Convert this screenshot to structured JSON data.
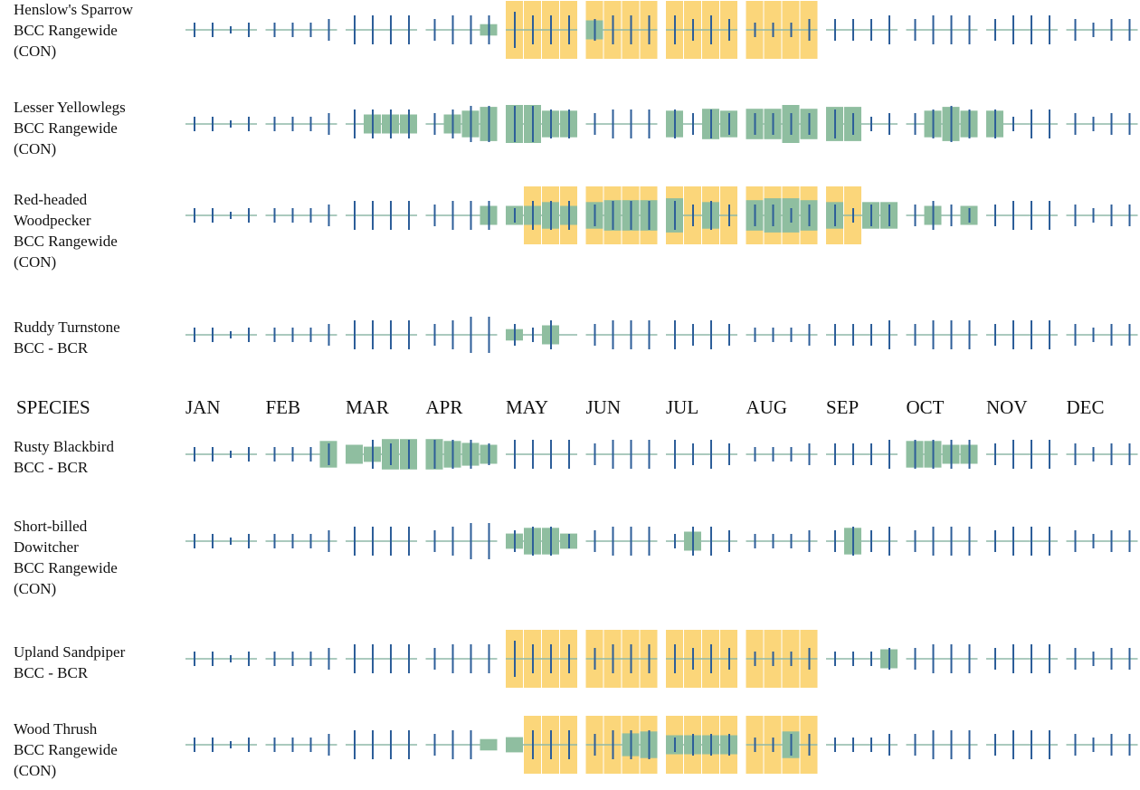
{
  "header": {
    "species": "SPECIES",
    "months": [
      "JAN",
      "FEB",
      "MAR",
      "APR",
      "MAY",
      "JUN",
      "JUL",
      "AUG",
      "SEP",
      "OCT",
      "NOV",
      "DEC"
    ]
  },
  "species": [
    {
      "lines": [
        "Henslow's Sparrow",
        "BCC Rangewide",
        "(CON)"
      ],
      "presence": [
        0,
        0,
        0,
        0,
        0,
        0,
        0,
        0,
        0,
        0,
        0,
        0,
        0,
        0,
        0,
        3,
        0,
        0,
        0,
        0,
        5,
        0,
        0,
        0,
        0,
        0,
        0,
        0,
        0,
        0,
        0,
        0,
        0,
        0,
        0,
        0,
        0,
        0,
        0,
        0,
        0,
        0,
        0,
        0,
        0,
        0,
        0,
        0
      ],
      "effort": [
        2,
        2,
        1,
        2,
        2,
        2,
        2,
        3,
        4,
        4,
        4,
        4,
        3,
        4,
        4,
        4,
        5,
        4,
        4,
        4,
        3,
        4,
        4,
        4,
        4,
        3,
        4,
        3,
        2,
        2,
        2,
        3,
        3,
        3,
        3,
        4,
        3,
        4,
        4,
        4,
        3,
        4,
        4,
        4,
        3,
        2,
        3,
        3
      ],
      "breeding": [
        0,
        0,
        0,
        0,
        0,
        0,
        0,
        0,
        0,
        0,
        0,
        0,
        0,
        0,
        0,
        0,
        1,
        1,
        1,
        1,
        1,
        1,
        1,
        1,
        1,
        1,
        1,
        1,
        1,
        1,
        1,
        1,
        0,
        0,
        0,
        0,
        0,
        0,
        0,
        0,
        0,
        0,
        0,
        0,
        0,
        0,
        0,
        0
      ]
    },
    {
      "lines": [
        "Lesser Yellowlegs",
        "BCC Rangewide",
        "(CON)"
      ],
      "presence": [
        0,
        0,
        0,
        0,
        0,
        0,
        0,
        0,
        0,
        5,
        5,
        5,
        0,
        5,
        7,
        9,
        10,
        10,
        7,
        7,
        0,
        0,
        0,
        0,
        7,
        0,
        8,
        7,
        8,
        8,
        10,
        8,
        9,
        9,
        0,
        0,
        0,
        7,
        9,
        7,
        7,
        0,
        0,
        0,
        0,
        0,
        0,
        0
      ],
      "effort": [
        2,
        2,
        1,
        2,
        2,
        2,
        2,
        3,
        4,
        4,
        4,
        4,
        3,
        4,
        5,
        5,
        5,
        5,
        4,
        4,
        3,
        4,
        4,
        4,
        4,
        3,
        4,
        3,
        3,
        3,
        3,
        3,
        4,
        3,
        2,
        3,
        3,
        4,
        5,
        4,
        4,
        2,
        4,
        4,
        3,
        2,
        3,
        3
      ],
      "breeding": [
        0,
        0,
        0,
        0,
        0,
        0,
        0,
        0,
        0,
        0,
        0,
        0,
        0,
        0,
        0,
        0,
        0,
        0,
        0,
        0,
        0,
        0,
        0,
        0,
        0,
        0,
        0,
        0,
        0,
        0,
        0,
        0,
        0,
        0,
        0,
        0,
        0,
        0,
        0,
        0,
        0,
        0,
        0,
        0,
        0,
        0,
        0,
        0
      ]
    },
    {
      "lines": [
        "Red-headed",
        "Woodpecker",
        "BCC Rangewide",
        "(CON)"
      ],
      "presence": [
        0,
        0,
        0,
        0,
        0,
        0,
        0,
        0,
        0,
        0,
        0,
        0,
        0,
        0,
        0,
        5,
        5,
        5,
        7,
        5,
        7,
        8,
        8,
        8,
        9,
        0,
        7,
        0,
        8,
        9,
        9,
        8,
        7,
        0,
        7,
        7,
        0,
        5,
        0,
        5,
        0,
        0,
        0,
        0,
        0,
        0,
        0,
        0
      ],
      "effort": [
        2,
        2,
        1,
        2,
        2,
        2,
        2,
        3,
        4,
        4,
        4,
        4,
        3,
        4,
        4,
        4,
        2,
        4,
        4,
        4,
        3,
        4,
        4,
        4,
        4,
        3,
        4,
        3,
        3,
        3,
        2,
        3,
        3,
        2,
        3,
        3,
        3,
        4,
        3,
        2,
        3,
        4,
        4,
        4,
        3,
        2,
        3,
        3
      ],
      "breeding": [
        0,
        0,
        0,
        0,
        0,
        0,
        0,
        0,
        0,
        0,
        0,
        0,
        0,
        0,
        0,
        0,
        0,
        1,
        1,
        1,
        1,
        1,
        1,
        1,
        1,
        1,
        1,
        1,
        1,
        1,
        1,
        1,
        1,
        1,
        0,
        0,
        0,
        0,
        0,
        0,
        0,
        0,
        0,
        0,
        0,
        0,
        0,
        0
      ]
    },
    {
      "lines": [
        "Ruddy Turnstone",
        "BCC - BCR"
      ],
      "presence": [
        0,
        0,
        0,
        0,
        0,
        0,
        0,
        0,
        0,
        0,
        0,
        0,
        0,
        0,
        0,
        0,
        3,
        0,
        5,
        0,
        0,
        0,
        0,
        0,
        0,
        0,
        0,
        0,
        0,
        0,
        0,
        0,
        0,
        0,
        0,
        0,
        0,
        0,
        0,
        0,
        0,
        0,
        0,
        0,
        0,
        0,
        0,
        0
      ],
      "effort": [
        2,
        2,
        1,
        2,
        2,
        2,
        2,
        3,
        4,
        4,
        4,
        4,
        3,
        4,
        5,
        5,
        3,
        2,
        4,
        0,
        3,
        4,
        4,
        4,
        4,
        3,
        4,
        3,
        2,
        2,
        2,
        3,
        3,
        3,
        3,
        4,
        3,
        4,
        4,
        4,
        3,
        4,
        4,
        4,
        3,
        2,
        3,
        3
      ],
      "breeding": [
        0,
        0,
        0,
        0,
        0,
        0,
        0,
        0,
        0,
        0,
        0,
        0,
        0,
        0,
        0,
        0,
        0,
        0,
        0,
        0,
        0,
        0,
        0,
        0,
        0,
        0,
        0,
        0,
        0,
        0,
        0,
        0,
        0,
        0,
        0,
        0,
        0,
        0,
        0,
        0,
        0,
        0,
        0,
        0,
        0,
        0,
        0,
        0
      ]
    },
    {
      "lines": [
        "Rusty Blackbird",
        "BCC - BCR"
      ],
      "presence": [
        0,
        0,
        0,
        0,
        0,
        0,
        0,
        7,
        5,
        4,
        8,
        8,
        8,
        7,
        6,
        5,
        0,
        0,
        0,
        0,
        0,
        0,
        0,
        0,
        0,
        0,
        0,
        0,
        0,
        0,
        0,
        0,
        0,
        0,
        0,
        0,
        7,
        7,
        5,
        5,
        0,
        0,
        0,
        0,
        0,
        0,
        0,
        0
      ],
      "effort": [
        2,
        2,
        1,
        2,
        2,
        2,
        2,
        3,
        0,
        4,
        3,
        4,
        4,
        4,
        4,
        3,
        4,
        4,
        4,
        4,
        3,
        4,
        4,
        4,
        4,
        3,
        4,
        3,
        2,
        2,
        2,
        3,
        3,
        3,
        3,
        4,
        4,
        4,
        4,
        4,
        3,
        4,
        4,
        4,
        3,
        2,
        3,
        3
      ],
      "breeding": [
        0,
        0,
        0,
        0,
        0,
        0,
        0,
        0,
        0,
        0,
        0,
        0,
        0,
        0,
        0,
        0,
        0,
        0,
        0,
        0,
        0,
        0,
        0,
        0,
        0,
        0,
        0,
        0,
        0,
        0,
        0,
        0,
        0,
        0,
        0,
        0,
        0,
        0,
        0,
        0,
        0,
        0,
        0,
        0,
        0,
        0,
        0,
        0
      ]
    },
    {
      "lines": [
        "Short-billed",
        "Dowitcher",
        "BCC Rangewide",
        "(CON)"
      ],
      "presence": [
        0,
        0,
        0,
        0,
        0,
        0,
        0,
        0,
        0,
        0,
        0,
        0,
        0,
        0,
        0,
        0,
        4,
        7,
        7,
        4,
        0,
        0,
        0,
        0,
        0,
        5,
        0,
        0,
        0,
        0,
        0,
        0,
        0,
        7,
        0,
        0,
        0,
        0,
        0,
        0,
        0,
        0,
        0,
        0,
        0,
        0,
        0,
        0
      ],
      "effort": [
        2,
        2,
        1,
        2,
        2,
        2,
        2,
        3,
        4,
        4,
        4,
        4,
        3,
        4,
        5,
        5,
        3,
        4,
        4,
        2,
        3,
        4,
        4,
        4,
        2,
        4,
        4,
        3,
        2,
        2,
        2,
        3,
        3,
        4,
        3,
        4,
        3,
        4,
        4,
        4,
        3,
        4,
        4,
        4,
        3,
        2,
        3,
        3
      ],
      "breeding": [
        0,
        0,
        0,
        0,
        0,
        0,
        0,
        0,
        0,
        0,
        0,
        0,
        0,
        0,
        0,
        0,
        0,
        0,
        0,
        0,
        0,
        0,
        0,
        0,
        0,
        0,
        0,
        0,
        0,
        0,
        0,
        0,
        0,
        0,
        0,
        0,
        0,
        0,
        0,
        0,
        0,
        0,
        0,
        0,
        0,
        0,
        0,
        0
      ]
    },
    {
      "lines": [
        "Upland Sandpiper",
        "BCC - BCR"
      ],
      "presence": [
        0,
        0,
        0,
        0,
        0,
        0,
        0,
        0,
        0,
        0,
        0,
        0,
        0,
        0,
        0,
        0,
        0,
        0,
        0,
        0,
        0,
        0,
        0,
        0,
        0,
        0,
        0,
        0,
        0,
        0,
        0,
        0,
        0,
        0,
        0,
        5,
        0,
        0,
        0,
        0,
        0,
        0,
        0,
        0,
        0,
        0,
        0,
        0
      ],
      "effort": [
        2,
        2,
        1,
        2,
        2,
        2,
        2,
        3,
        4,
        4,
        4,
        4,
        3,
        4,
        4,
        4,
        5,
        4,
        4,
        4,
        3,
        4,
        4,
        4,
        4,
        3,
        4,
        3,
        2,
        2,
        2,
        3,
        2,
        2,
        2,
        3,
        3,
        4,
        4,
        4,
        3,
        4,
        4,
        4,
        3,
        2,
        3,
        3
      ],
      "breeding": [
        0,
        0,
        0,
        0,
        0,
        0,
        0,
        0,
        0,
        0,
        0,
        0,
        0,
        0,
        0,
        0,
        1,
        1,
        1,
        1,
        1,
        1,
        1,
        1,
        1,
        1,
        1,
        1,
        1,
        1,
        1,
        1,
        0,
        0,
        0,
        0,
        0,
        0,
        0,
        0,
        0,
        0,
        0,
        0,
        0,
        0,
        0,
        0
      ]
    },
    {
      "lines": [
        "Wood Thrush",
        "BCC Rangewide",
        "(CON)"
      ],
      "presence": [
        0,
        0,
        0,
        0,
        0,
        0,
        0,
        0,
        0,
        0,
        0,
        0,
        0,
        0,
        0,
        3,
        4,
        0,
        0,
        0,
        0,
        0,
        6,
        7,
        5,
        5,
        5,
        5,
        0,
        0,
        7,
        0,
        0,
        0,
        0,
        0,
        0,
        0,
        0,
        0,
        0,
        0,
        0,
        0,
        0,
        0,
        0,
        0
      ],
      "effort": [
        2,
        2,
        1,
        2,
        2,
        2,
        2,
        3,
        4,
        4,
        4,
        4,
        3,
        4,
        4,
        0,
        0,
        4,
        4,
        4,
        3,
        4,
        4,
        4,
        2,
        3,
        3,
        3,
        2,
        2,
        3,
        3,
        2,
        2,
        2,
        3,
        3,
        4,
        4,
        4,
        3,
        4,
        4,
        4,
        3,
        2,
        3,
        3
      ],
      "breeding": [
        0,
        0,
        0,
        0,
        0,
        0,
        0,
        0,
        0,
        0,
        0,
        0,
        0,
        0,
        0,
        0,
        0,
        1,
        1,
        1,
        1,
        1,
        1,
        1,
        1,
        1,
        1,
        1,
        1,
        1,
        1,
        1,
        0,
        0,
        0,
        0,
        0,
        0,
        0,
        0,
        0,
        0,
        0,
        0,
        0,
        0,
        0,
        0
      ]
    }
  ]
}
